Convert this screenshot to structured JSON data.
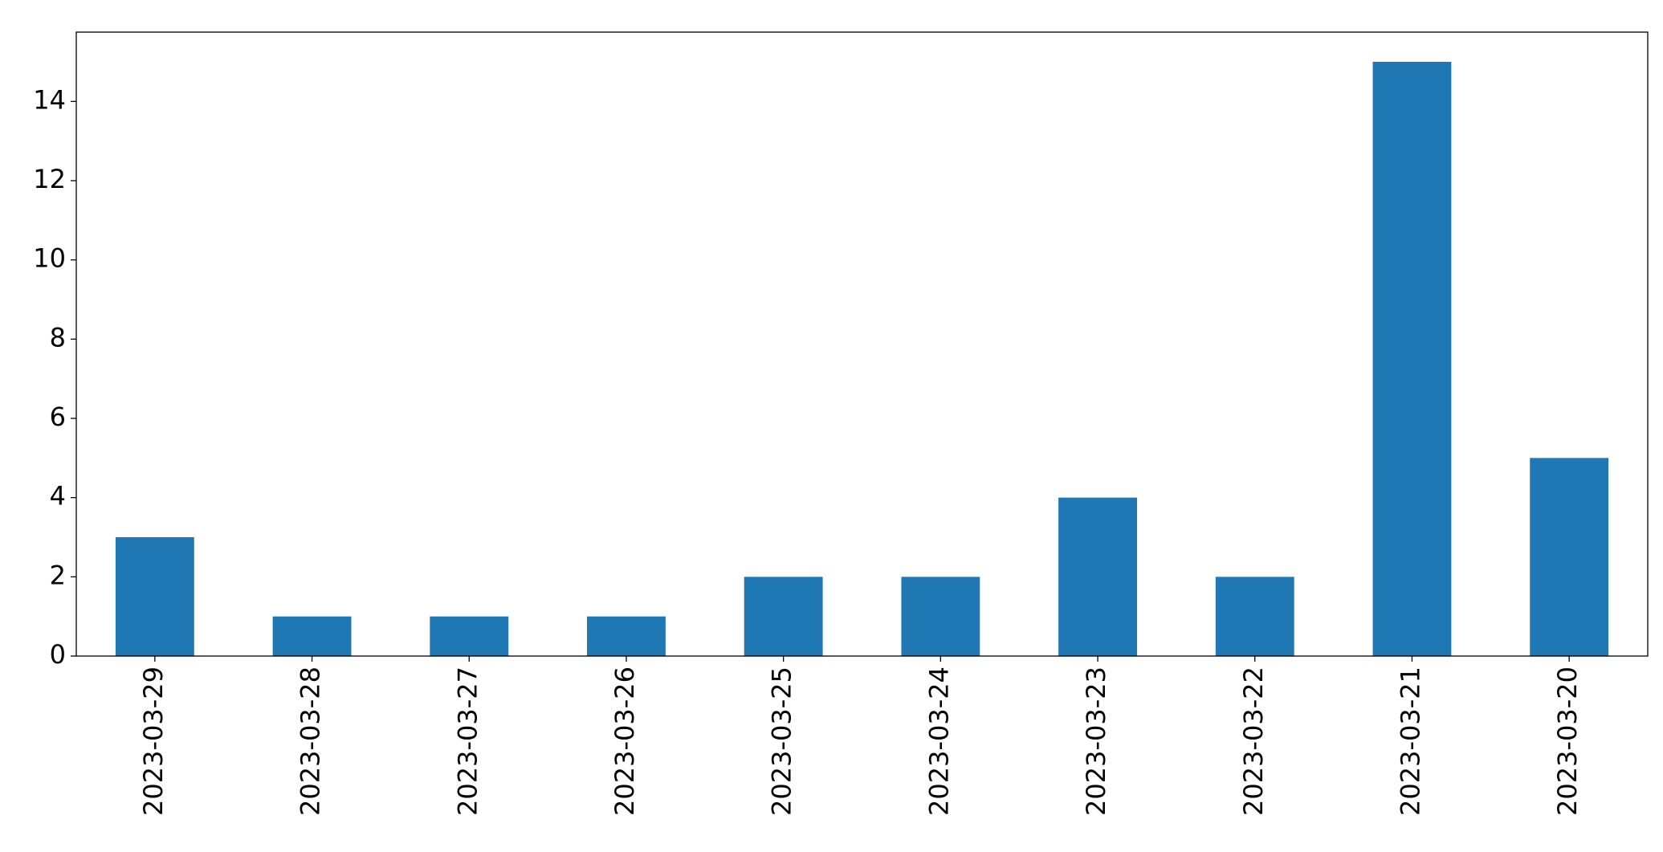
{
  "chart_data": {
    "type": "bar",
    "categories": [
      "2023-03-29",
      "2023-03-28",
      "2023-03-27",
      "2023-03-26",
      "2023-03-25",
      "2023-03-24",
      "2023-03-23",
      "2023-03-22",
      "2023-03-21",
      "2023-03-20"
    ],
    "values": [
      3,
      1,
      1,
      1,
      2,
      2,
      4,
      2,
      15,
      5
    ],
    "color": "#1f77b4",
    "ylim": [
      0,
      15.75
    ],
    "yticks": [
      0,
      2,
      4,
      6,
      8,
      10,
      12,
      14
    ],
    "grid": false
  }
}
